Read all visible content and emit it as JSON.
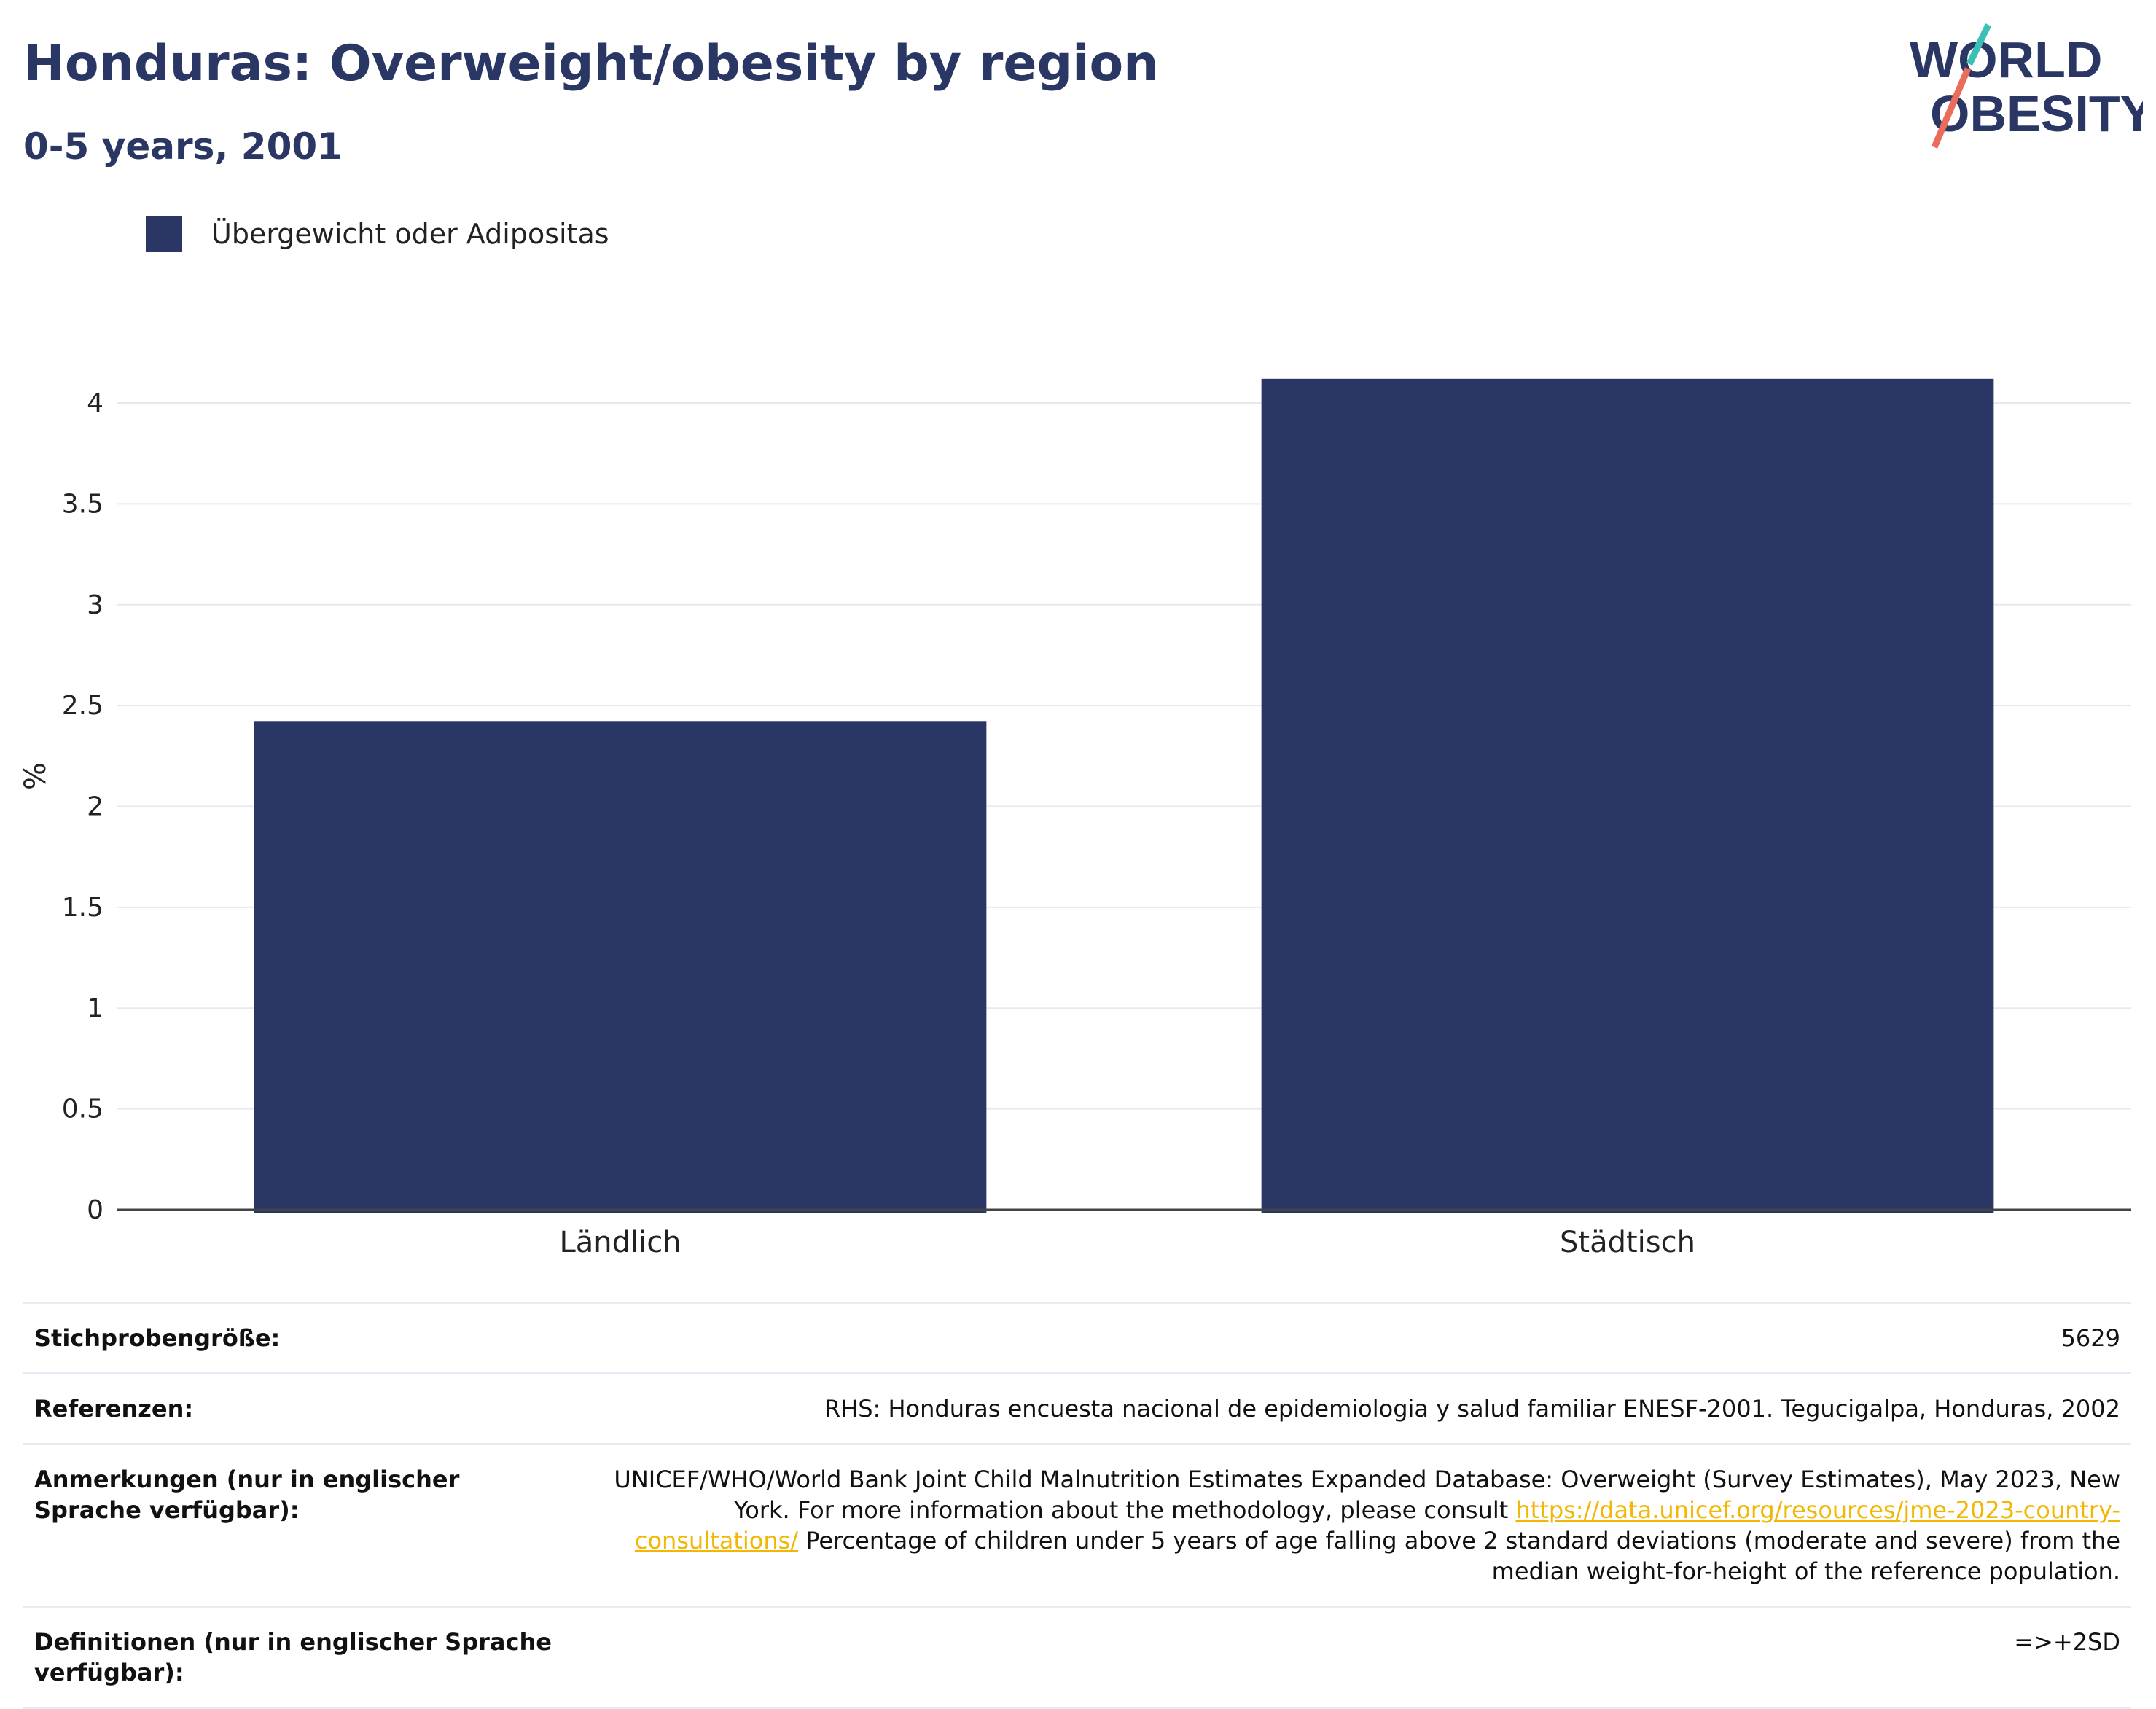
{
  "header": {
    "title": "Honduras: Overweight/obesity by region",
    "subtitle": "0-5 years, 2001"
  },
  "logo": {
    "line1": "WORLD",
    "line2": "OBESITY",
    "accent_teal": "#3bbfb7",
    "accent_coral": "#ea6d5b"
  },
  "legend": {
    "label": "Übergewicht oder Adipositas",
    "color": "#2a3663"
  },
  "chart_data": {
    "type": "bar",
    "categories": [
      "Ländlich",
      "Städtisch"
    ],
    "series": [
      {
        "name": "Übergewicht oder Adipositas",
        "values": [
          2.42,
          4.12
        ],
        "color": "#2a3663"
      }
    ],
    "ylabel": "%",
    "ylim": [
      0,
      4.3
    ],
    "yticks": [
      0,
      0.5,
      1,
      1.5,
      2,
      2.5,
      3,
      3.5,
      4
    ],
    "ytick_labels": [
      "0",
      "0.5",
      "1",
      "1.5",
      "2",
      "2.5",
      "3",
      "3.5",
      "4"
    ],
    "grid": true,
    "legend_position": "top-left"
  },
  "meta": {
    "sample_size": {
      "label": "Stichprobengröße:",
      "value": "5629"
    },
    "references": {
      "label": "Referenzen:",
      "value": "RHS: Honduras encuesta nacional de epidemiologia y salud familiar ENESF-2001. Tegucigalpa, Honduras, 2002"
    },
    "notes": {
      "label": "Anmerkungen (nur in englischer Sprache verfügbar):",
      "text_before": "UNICEF/WHO/World Bank Joint Child Malnutrition Estimates Expanded Database: Overweight (Survey Estimates), May 2023, New York. For more information about the methodology, please consult ",
      "link": "https://data.unicef.org/resources/jme-2023-country-consultations/",
      "text_after": " Percentage of children under 5 years of age falling above 2 standard deviations (moderate and severe) from the median weight-for-height of the reference population."
    },
    "definitions": {
      "label": "Definitionen (nur in englischer Sprache verfügbar):",
      "value": "=>+2SD"
    }
  }
}
